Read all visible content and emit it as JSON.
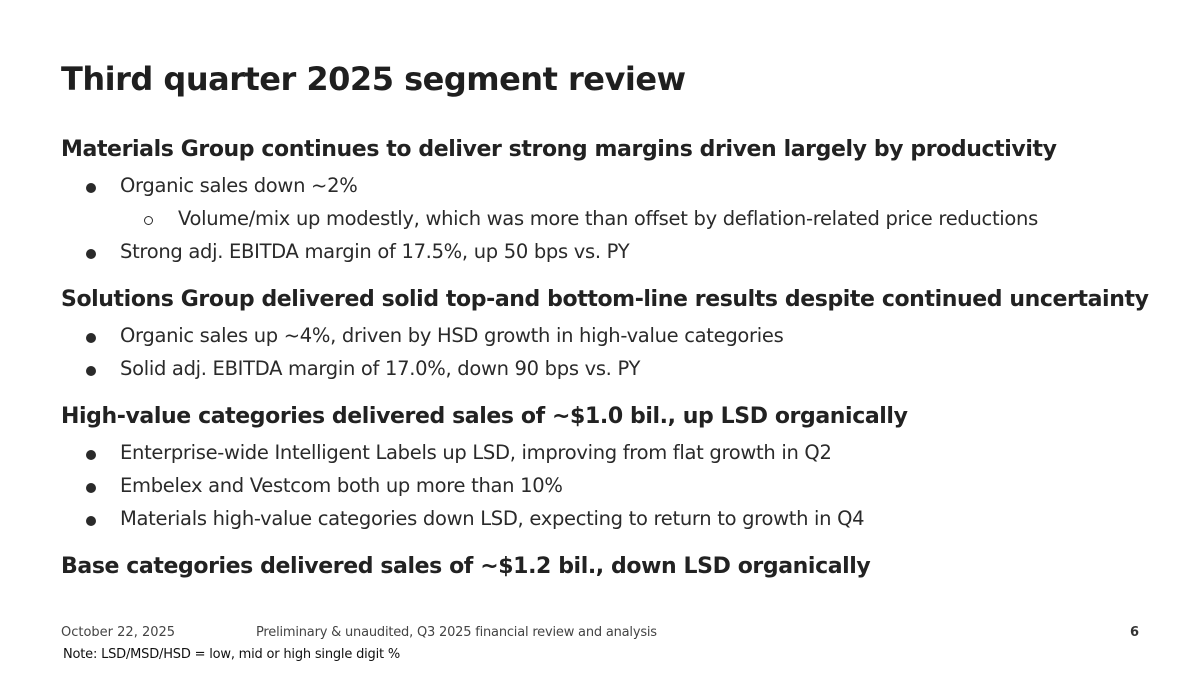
{
  "slide": {
    "title": "Third quarter 2025 segment review",
    "sections": [
      {
        "heading": "Materials Group continues to deliver strong margins driven largely by productivity",
        "bullets": [
          {
            "text": "Organic sales down ~2%",
            "sub_bullets": [
              "Volume/mix up modestly, which was more than offset by deflation-related price reductions"
            ]
          },
          {
            "text": "Strong adj. EBITDA margin of 17.5%, up 50 bps vs. PY"
          }
        ]
      },
      {
        "heading": "Solutions Group delivered solid top-and bottom-line results despite continued uncertainty",
        "bullets": [
          {
            "text": "Organic sales up ~4%, driven by HSD growth in high-value categories"
          },
          {
            "text": "Solid adj. EBITDA margin of 17.0%, down 90 bps vs. PY"
          }
        ]
      },
      {
        "heading": "High-value categories delivered sales of ~$1.0 bil., up LSD organically",
        "bullets": [
          {
            "text": "Enterprise-wide Intelligent Labels up LSD, improving from flat growth in Q2"
          },
          {
            "text": "Embelex and Vestcom both up more than 10%"
          },
          {
            "text": "Materials high-value categories down LSD, expecting to return to growth in Q4"
          }
        ]
      },
      {
        "heading": "Base categories delivered sales of ~$1.2 bil., down LSD organically",
        "bullets": []
      }
    ]
  },
  "footer": {
    "date": "October 22, 2025",
    "disclaimer": "Preliminary & unaudited, Q3 2025 financial review and analysis",
    "page_number": "6",
    "note": "Note: LSD/MSD/HSD = low, mid or high single digit %"
  }
}
